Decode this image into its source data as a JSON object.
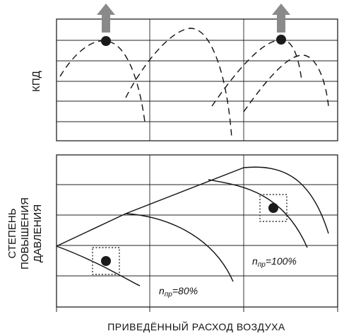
{
  "labels": {
    "efficiency_axis": "КПД",
    "pressure_axis_line1": "СТЕПЕНЬ",
    "pressure_axis_line2": "ПОВЫШЕНИЯ",
    "pressure_axis_line3": "ДАВЛЕНИЯ",
    "x_axis": "ПРИВЕДЁННЫЙ РАСХОД ВОЗДУХА",
    "curve_80_prefix": "n",
    "curve_80_subscript": "пр",
    "curve_80_value": "=80%",
    "curve_100_prefix": "n",
    "curve_100_subscript": "пр",
    "curve_100_value": "=100%"
  },
  "colors": {
    "line": "#111111",
    "grid": "#222222",
    "arrow": "#8a8a8a",
    "marker": "#1a1a1a"
  },
  "icons": {
    "shift_arrow": "up-arrow-icon",
    "operating_point": "filled-circle-marker",
    "highlight_box": "dotted-square"
  }
}
